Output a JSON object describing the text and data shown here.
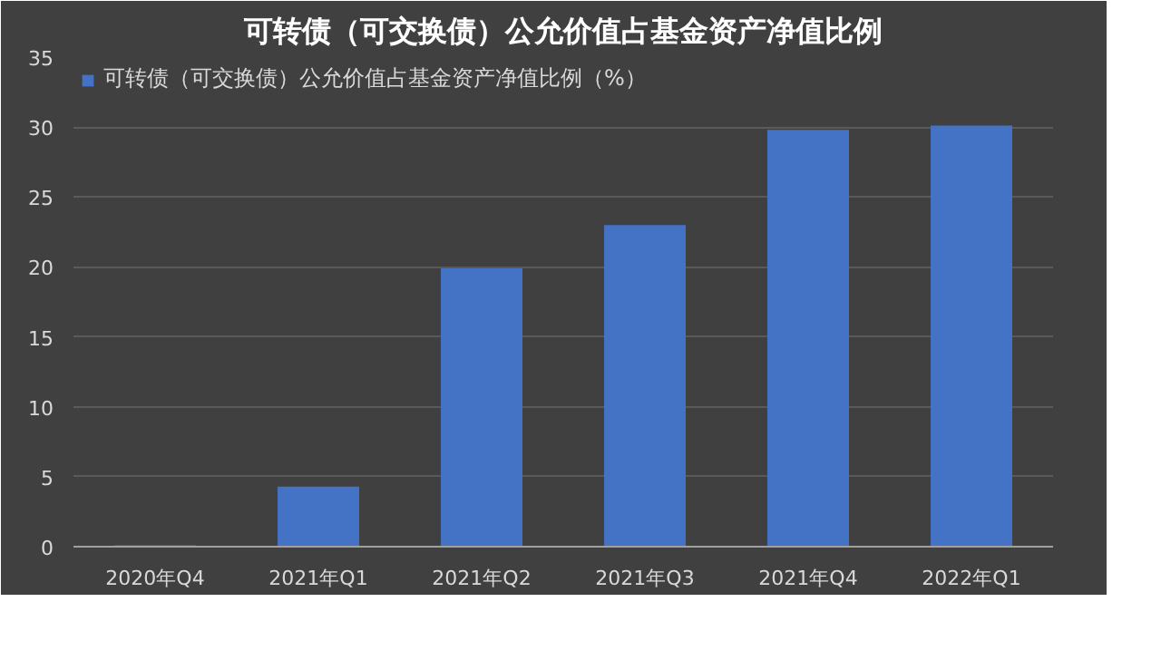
{
  "chart_data": {
    "type": "bar",
    "title": "可转债（可交换债）公允价值占基金资产净值比例",
    "categories": [
      "2020年Q4",
      "2021年Q1",
      "2021年Q2",
      "2021年Q3",
      "2021年Q4",
      "2022年Q1"
    ],
    "series": [
      {
        "name": "可转债（可交换债）公允价值占基金资产净值比例（%）",
        "color": "#4472c4",
        "values": [
          0.1,
          4.3,
          19.9,
          23.0,
          29.8,
          30.1
        ]
      }
    ],
    "ylim": [
      0,
      35
    ],
    "yticks": [
      0,
      5,
      10,
      15,
      20,
      25,
      30,
      35
    ],
    "grid": "y",
    "legend": "top left"
  }
}
